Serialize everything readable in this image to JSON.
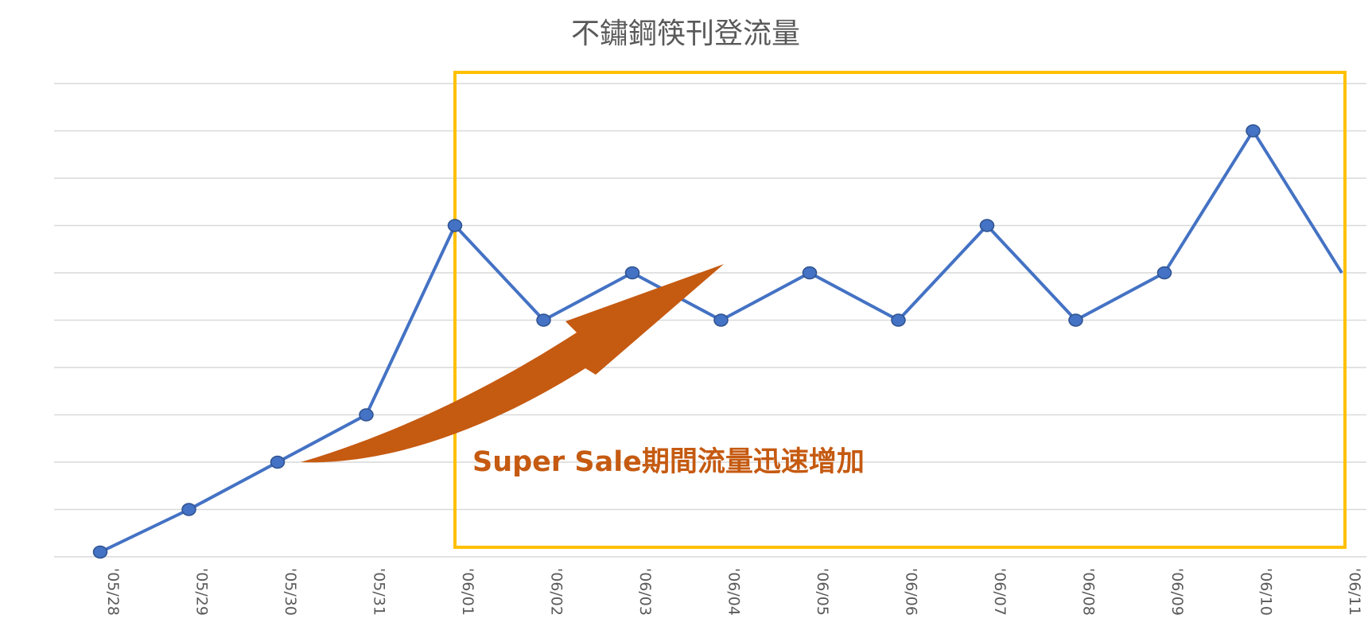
{
  "chart_data": {
    "type": "line",
    "title": "不鏽鋼筷刊登流量",
    "xlabel": "",
    "ylabel": "",
    "categories": [
      "'05/28",
      "'05/29",
      "'05/30",
      "'05/31",
      "'06/01",
      "'06/02",
      "'06/03",
      "'06/04",
      "'06/05",
      "'06/06",
      "'06/07",
      "'06/08",
      "'06/09",
      "'06/10",
      "'06/11"
    ],
    "series": [
      {
        "values": [
          0.1,
          1.0,
          2.0,
          3.0,
          7.0,
          5.0,
          6.0,
          5.0,
          6.0,
          5.0,
          7.0,
          5.0,
          6.0,
          9.0,
          6.0
        ]
      }
    ],
    "ylim": [
      0,
      10
    ],
    "grid": true,
    "legend": "none",
    "colors": {
      "line": "#4472c4",
      "marker": "#4472c4",
      "highlight_box": "#ffc000",
      "arrow": "#c55a11",
      "grid": "#d9d9d9"
    },
    "annotations": [
      {
        "text": "Super Sale期間流量迅速增加",
        "color": "#c55a11"
      }
    ],
    "highlight_range": [
      "'06/01",
      "'06/11"
    ]
  }
}
